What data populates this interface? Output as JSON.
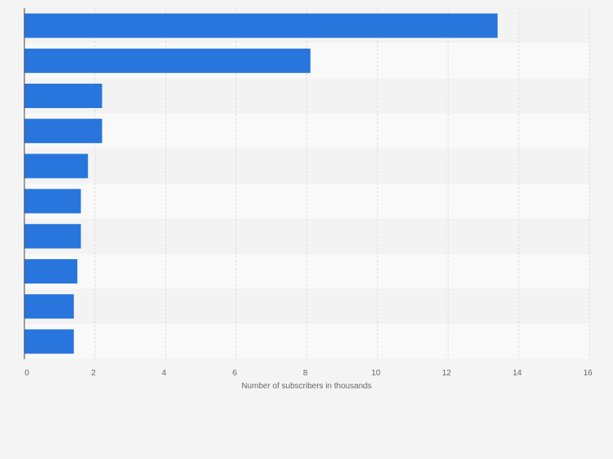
{
  "chart_data": {
    "type": "bar",
    "orientation": "horizontal",
    "categories": [
      "",
      "",
      "",
      "",
      "",
      "",
      "",
      "",
      "",
      ""
    ],
    "values": [
      13.4,
      8.1,
      2.2,
      2.2,
      1.8,
      1.6,
      1.6,
      1.5,
      1.4,
      1.4
    ],
    "title": "",
    "xlabel": "Number of subscribers in thousands",
    "ylabel": "",
    "xlim": [
      0,
      16
    ],
    "x_ticks": [
      0,
      2,
      4,
      6,
      8,
      10,
      12,
      14,
      16
    ],
    "x_tick_labels": [
      "0",
      "2",
      "4",
      "6",
      "8",
      "10",
      "12",
      "14",
      "16"
    ],
    "grid": true,
    "legend": "none",
    "colors": {
      "bar": "#2876dd",
      "background": "#f4f4f4",
      "band_light": "#f9f9f9",
      "band_dark": "#f3f3f3",
      "grid": "#dddddd",
      "axis": "#444444",
      "text": "#666666"
    }
  }
}
